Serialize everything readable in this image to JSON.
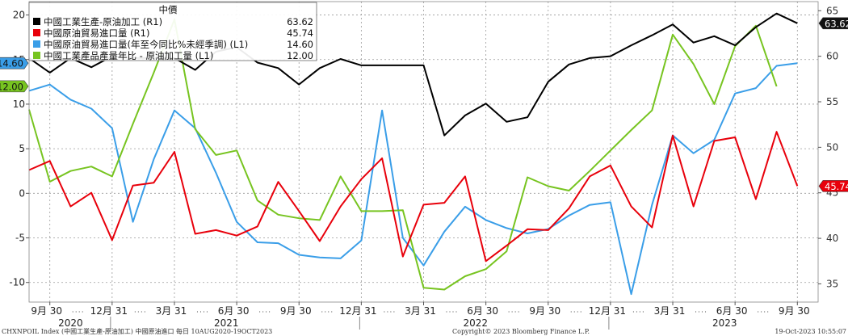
{
  "chart_data": {
    "type": "line",
    "legend": {
      "title": "中價",
      "placement": "top-left",
      "entries": [
        {
          "label": "中國工業生產-原油加工 (R1)",
          "value": "63.62",
          "color": "#000000"
        },
        {
          "label": "中國原油貿易進口量 (R1)",
          "value": "45.74",
          "color": "#e8000b"
        },
        {
          "label": "中國原油貿易進口量(年至今同比%未經季調) (L1)",
          "value": "14.60",
          "color": "#3a9ee8"
        },
        {
          "label": "中國工業產品產量年比 - 原油加工量 (L1)",
          "value": "12.00",
          "color": "#77c420"
        }
      ]
    },
    "x_ticks": [
      "9月 30",
      "12月 31",
      "3月 31",
      "6月 30",
      "9月 30",
      "12月 31",
      "3月 31",
      "6月 30",
      "9月 30",
      "12月 31",
      "3月 31",
      "6月 30",
      "9月 30"
    ],
    "x_tick_months": [
      1,
      4,
      7,
      10,
      13,
      16,
      19,
      22,
      25,
      28,
      31,
      34,
      37
    ],
    "years": [
      {
        "label": "2020",
        "month": 2
      },
      {
        "label": "2021",
        "month": 9.5
      },
      {
        "label": "2022",
        "month": 21.5
      },
      {
        "label": "2023",
        "month": 33.5
      }
    ],
    "left_axis": {
      "ticks": [
        20,
        15,
        10,
        5,
        0,
        -5,
        -10
      ],
      "ylim": [
        -12.2,
        21.5
      ]
    },
    "right_axis": {
      "ticks": [
        65,
        60,
        55,
        50,
        45,
        40,
        35
      ],
      "ylim": [
        33,
        66
      ]
    },
    "grid": true,
    "series": [
      {
        "name": "中國工業生產-原油加工 (R1)",
        "axis": "right",
        "color": "#000000",
        "x": [
          0,
          1,
          2,
          3,
          4,
          5,
          6,
          7,
          8,
          9,
          10,
          11,
          12,
          13,
          14,
          15,
          16,
          17,
          18,
          19,
          20,
          21,
          22,
          23,
          24,
          25,
          26,
          27,
          28,
          29,
          30,
          31,
          32,
          33,
          34,
          35,
          36,
          37,
          38
        ],
        "values": [
          59.8,
          58.2,
          59.8,
          58.8,
          60.0,
          59.8,
          59.8,
          59.8,
          58.5,
          60.5,
          61.0,
          59.3,
          58.7,
          56.9,
          58.7,
          59.7,
          59.0,
          59.0,
          59.0,
          59.0,
          51.3,
          53.5,
          54.8,
          52.8,
          53.3,
          57.2,
          59.1,
          59.8,
          60.0,
          61.2,
          62.3,
          63.5,
          61.5,
          62.2,
          61.2,
          63.2,
          64.7,
          63.62,
          null
        ],
        "label_value": "63.62"
      },
      {
        "name": "中國原油貿易進口量 (R1)",
        "axis": "right",
        "color": "#e8000b",
        "x": [
          0,
          1,
          2,
          3,
          4,
          5,
          6,
          7,
          8,
          9,
          10,
          11,
          12,
          13,
          14,
          15,
          16,
          17,
          18,
          19,
          20,
          21,
          22,
          23,
          24,
          25,
          26,
          27,
          28,
          29,
          30,
          31,
          32,
          33,
          34,
          35,
          36,
          37,
          38
        ],
        "values": [
          47.5,
          48.5,
          43.5,
          45.0,
          39.8,
          45.8,
          46.1,
          49.5,
          40.5,
          40.9,
          40.3,
          41.3,
          46.2,
          43.0,
          39.7,
          43.5,
          46.5,
          48.8,
          38.0,
          43.7,
          43.9,
          46.8,
          37.5,
          39.2,
          41.0,
          40.9,
          43.3,
          46.8,
          48.0,
          43.5,
          41.2,
          51.3,
          43.5,
          50.7,
          51.1,
          44.3,
          51.7,
          45.74,
          null
        ],
        "label_value": "45.74"
      },
      {
        "name": "中國原油貿易進口量(年至今同比%未經季調) (L1)",
        "axis": "left",
        "color": "#3a9ee8",
        "x": [
          0,
          1,
          2,
          3,
          4,
          5,
          6,
          7,
          8,
          9,
          10,
          11,
          12,
          13,
          14,
          15,
          16,
          17,
          18,
          19,
          20,
          21,
          22,
          23,
          24,
          25,
          26,
          27,
          28,
          29,
          30,
          31,
          32,
          33,
          34,
          35,
          36,
          37,
          38
        ],
        "values": [
          11.5,
          12.2,
          10.5,
          9.5,
          7.3,
          -3.2,
          3.8,
          9.3,
          7.3,
          2.3,
          -3.2,
          -5.5,
          -5.6,
          -6.9,
          -7.2,
          -7.3,
          -5.3,
          9.3,
          -5.0,
          -8.1,
          -4.3,
          -1.5,
          -3.0,
          -3.9,
          -4.5,
          -4.0,
          -2.5,
          -1.3,
          -1.0,
          -11.3,
          -1.3,
          6.5,
          4.5,
          6.0,
          11.2,
          11.8,
          14.3,
          14.6,
          null
        ],
        "label_value": "14.60"
      },
      {
        "name": "中國工業產品產量年比 - 原油加工量 (L1)",
        "axis": "left",
        "color": "#77c420",
        "x": [
          0,
          1,
          2,
          3,
          4,
          5,
          6,
          7,
          8,
          9,
          10,
          11,
          12,
          13,
          14,
          15,
          16,
          17,
          18,
          19,
          20,
          21,
          22,
          23,
          24,
          25,
          26,
          27,
          28,
          29,
          30,
          31,
          32,
          33,
          34,
          35,
          36,
          37,
          38
        ],
        "values": [
          9.4,
          1.3,
          2.5,
          3.0,
          1.9,
          7.8,
          13.5,
          19.5,
          7.2,
          4.3,
          4.8,
          -0.8,
          -2.4,
          -2.8,
          -3.0,
          1.9,
          -2.0,
          -2.0,
          -1.9,
          -10.6,
          -10.8,
          -9.3,
          -8.5,
          -6.5,
          1.8,
          0.8,
          0.3,
          2.5,
          4.8,
          7.1,
          9.3,
          17.8,
          14.5,
          10.0,
          16.5,
          18.8,
          12.0,
          null,
          null
        ],
        "label_value": "12.00"
      }
    ]
  },
  "footer": {
    "left": "CHXNPOIL Index (中國工業生產-原油加工) 中國原油進口 每日 10AUG2020-19OCT2023",
    "center": "Copyright© 2023 Bloomberg Finance L.P.",
    "right": "19-Oct-2023 10:55:07"
  }
}
